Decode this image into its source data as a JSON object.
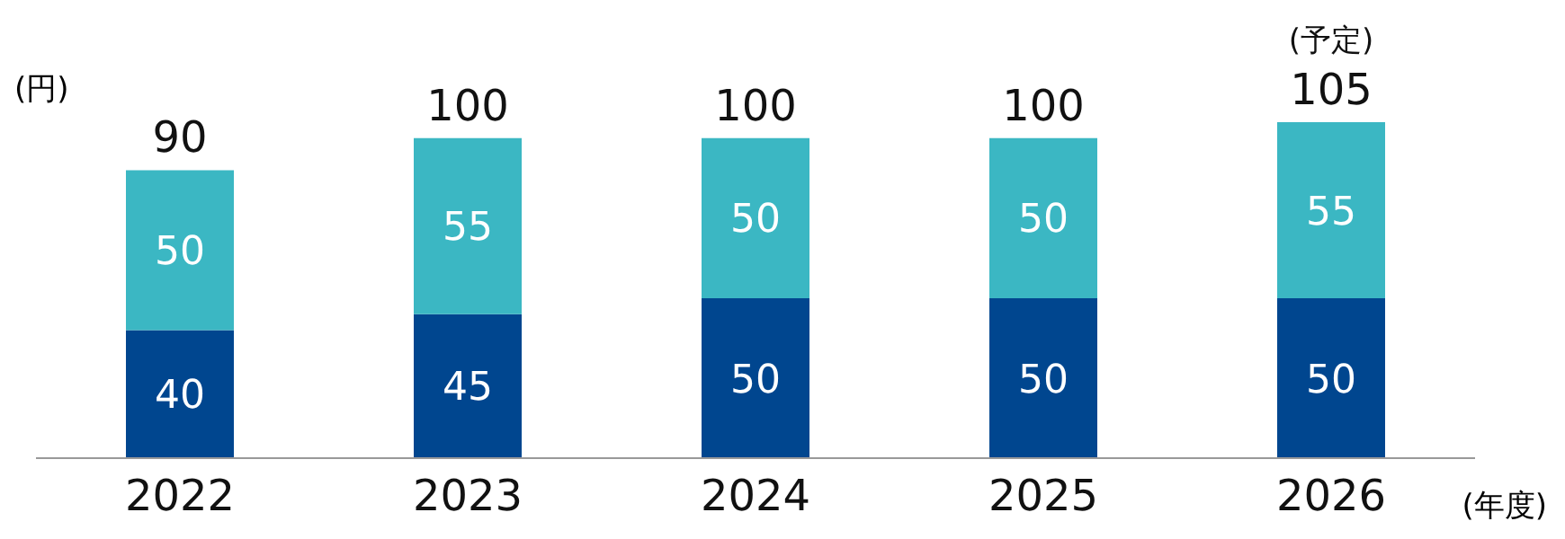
{
  "chart_data": {
    "type": "bar",
    "stacked": true,
    "ylabel": "(円)",
    "xlabel": "(年度)",
    "categories": [
      "2022",
      "2023",
      "2024",
      "2025",
      "2026"
    ],
    "series": [
      {
        "color": "#00468f",
        "values": [
          40,
          45,
          50,
          50,
          50
        ]
      },
      {
        "color": "#3bb7c3",
        "values": [
          50,
          55,
          50,
          50,
          55
        ]
      }
    ],
    "data_labels": true,
    "totals": [
      "90",
      "100",
      "100",
      "100",
      "105"
    ],
    "annotations": [
      "(予定)"
    ],
    "legend": false,
    "grid": false
  }
}
